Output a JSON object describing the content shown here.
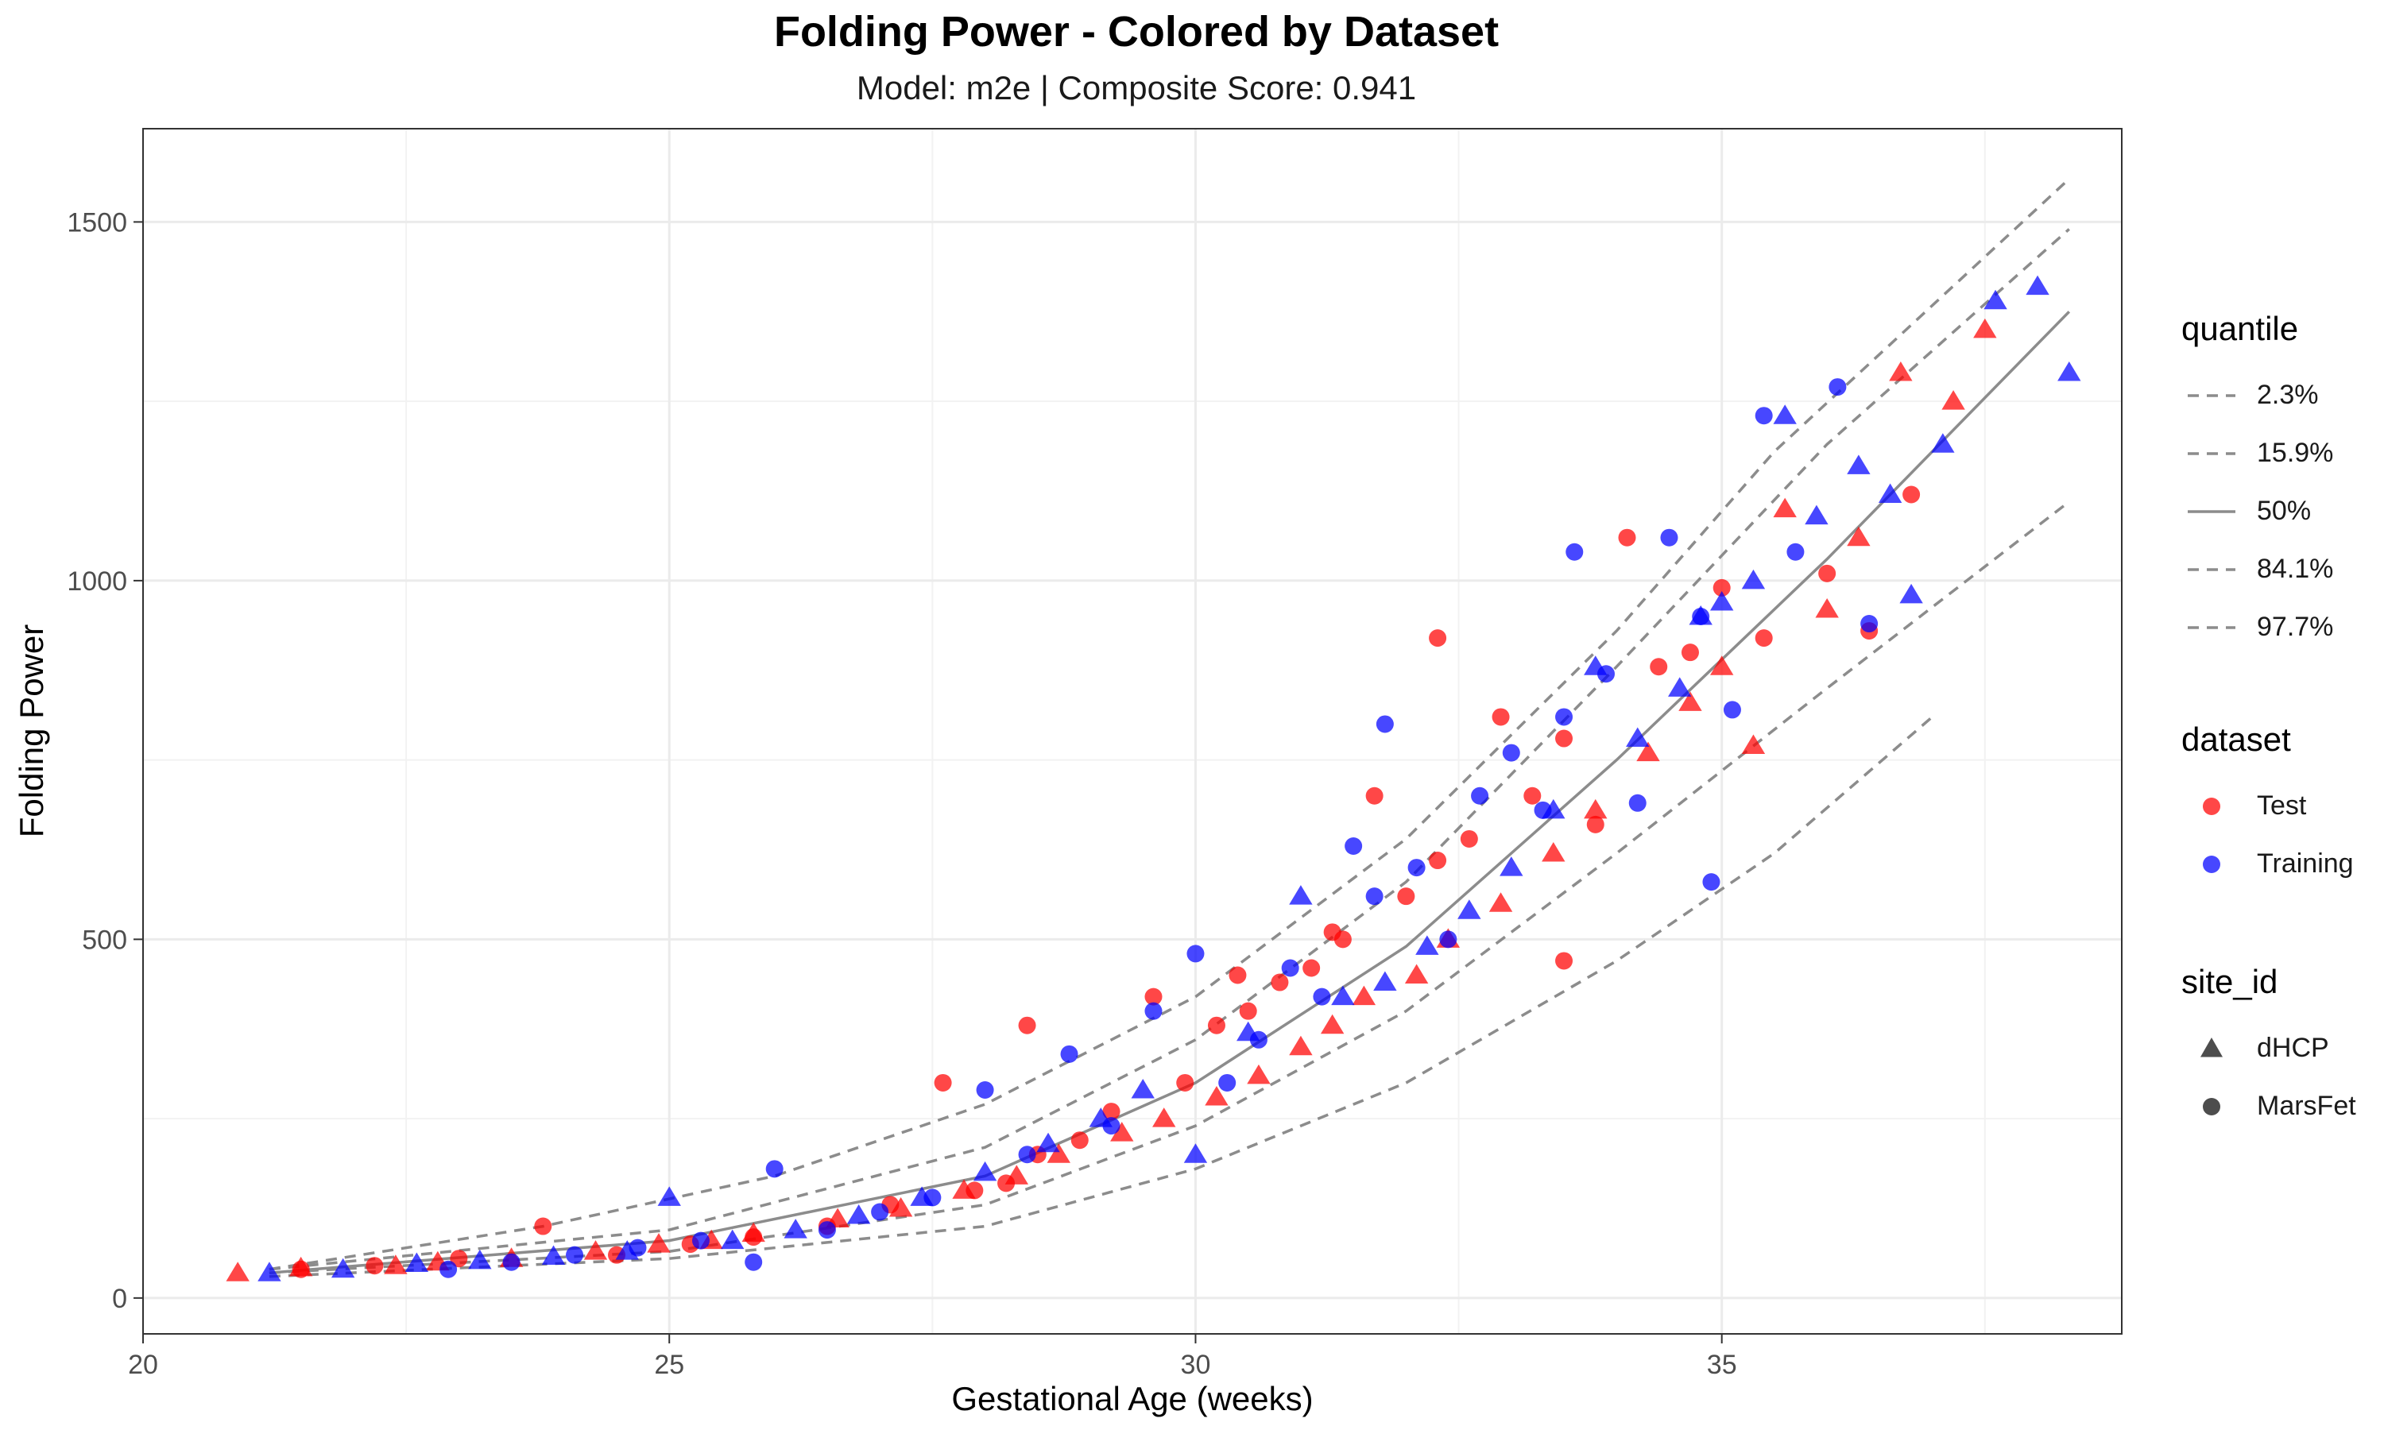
{
  "chart_data": {
    "type": "scatter",
    "title": "Folding Power - Colored by Dataset",
    "subtitle": "Model: m2e | Composite Score: 0.941",
    "xlabel": "Gestational Age (weeks)",
    "ylabel": "Folding Power",
    "xlim": [
      20,
      38.8
    ],
    "ylim": [
      -50,
      1630
    ],
    "x_ticks": [
      20,
      25,
      30,
      35
    ],
    "y_ticks": [
      0,
      500,
      1000,
      1500
    ],
    "grid": true,
    "colors": {
      "Test": "#ff0000",
      "Training": "#0000ff",
      "quantile": "#8c8c8c"
    },
    "legends": [
      {
        "title": "quantile",
        "entries": [
          {
            "label": "2.3%",
            "line": "dashed"
          },
          {
            "label": "15.9%",
            "line": "dashed"
          },
          {
            "label": "50%",
            "line": "solid"
          },
          {
            "label": "84.1%",
            "line": "dashed"
          },
          {
            "label": "97.7%",
            "line": "dashed"
          }
        ]
      },
      {
        "title": "dataset",
        "entries": [
          {
            "label": "Test",
            "color": "#ff0000"
          },
          {
            "label": "Training",
            "color": "#0000ff"
          }
        ]
      },
      {
        "title": "site_id",
        "entries": [
          {
            "label": "dHCP",
            "shape": "triangle"
          },
          {
            "label": "MarsFet",
            "shape": "circle"
          }
        ]
      }
    ],
    "quantile_curves": [
      {
        "name": "2.3%",
        "dash": true,
        "x": [
          21.2,
          25,
          28,
          30,
          32,
          34,
          35.5,
          37
        ],
        "y": [
          30,
          55,
          100,
          180,
          300,
          470,
          620,
          810
        ]
      },
      {
        "name": "15.9%",
        "dash": true,
        "x": [
          21.2,
          25,
          28,
          30,
          32,
          34,
          36,
          38.3
        ],
        "y": [
          35,
          65,
          130,
          240,
          400,
          620,
          850,
          1110
        ]
      },
      {
        "name": "50%",
        "dash": false,
        "x": [
          21.2,
          25,
          28,
          30,
          32,
          34,
          36,
          38.3
        ],
        "y": [
          35,
          80,
          170,
          300,
          490,
          750,
          1030,
          1375
        ]
      },
      {
        "name": "84.1%",
        "dash": true,
        "x": [
          21.2,
          25,
          28,
          30,
          32,
          34,
          36,
          38.3
        ],
        "y": [
          40,
          95,
          210,
          360,
          580,
          880,
          1190,
          1490
        ]
      },
      {
        "name": "97.7%",
        "dash": true,
        "x": [
          21.2,
          23.8,
          26,
          28,
          30,
          32,
          34,
          35.5,
          38.3
        ],
        "y": [
          40,
          100,
          170,
          270,
          420,
          640,
          930,
          1180,
          1560
        ]
      }
    ],
    "series": [
      {
        "name": "Test",
        "site": "dHCP",
        "x": [
          20.9,
          21.5,
          22.4,
          22.8,
          23.5,
          24.3,
          24.9,
          25.4,
          25.8,
          26.6,
          27.2,
          27.8,
          28.3,
          28.7,
          29.3,
          29.7,
          30.2,
          30.6,
          31.0,
          31.3,
          31.6,
          32.1,
          32.4,
          32.9,
          33.4,
          33.8,
          34.3,
          34.7,
          35.0,
          35.3,
          35.6,
          36.0,
          36.3,
          36.7,
          37.2,
          37.5
        ],
        "y": [
          35,
          42,
          45,
          50,
          55,
          65,
          75,
          80,
          90,
          110,
          125,
          150,
          170,
          200,
          230,
          250,
          280,
          310,
          350,
          380,
          420,
          450,
          500,
          550,
          620,
          680,
          760,
          830,
          880,
          770,
          1100,
          960,
          1060,
          1290,
          1250,
          1350
        ]
      },
      {
        "name": "Test",
        "site": "MarsFet",
        "x": [
          21.5,
          22.2,
          23.0,
          23.8,
          24.5,
          25.2,
          25.8,
          26.5,
          27.1,
          27.6,
          27.9,
          28.2,
          28.5,
          28.9,
          29.2,
          29.6,
          29.9,
          30.2,
          30.5,
          30.8,
          31.1,
          31.4,
          31.7,
          32.0,
          32.3,
          32.6,
          32.9,
          33.2,
          33.5,
          33.8,
          34.1,
          34.4,
          34.7,
          35.0,
          35.4,
          36.0,
          36.4,
          36.8,
          31.3,
          30.4,
          33.5,
          32.3,
          28.4
        ],
        "y": [
          40,
          45,
          55,
          100,
          60,
          75,
          85,
          100,
          130,
          300,
          150,
          160,
          200,
          220,
          260,
          420,
          300,
          380,
          400,
          440,
          460,
          500,
          700,
          560,
          920,
          640,
          810,
          700,
          470,
          660,
          1060,
          880,
          900,
          990,
          920,
          1010,
          930,
          1120,
          510,
          450,
          780,
          610,
          380
        ]
      },
      {
        "name": "Training",
        "site": "dHCP",
        "x": [
          21.2,
          21.9,
          22.6,
          23.2,
          23.9,
          24.6,
          25.0,
          25.6,
          26.2,
          26.8,
          27.4,
          28.0,
          28.6,
          29.1,
          29.5,
          30.0,
          30.5,
          31.0,
          31.4,
          31.8,
          32.2,
          32.6,
          33.0,
          33.4,
          33.8,
          34.2,
          34.6,
          35.0,
          35.3,
          35.6,
          35.9,
          36.3,
          36.6,
          37.1,
          37.6,
          38.0,
          38.3,
          36.8,
          34.8
        ],
        "y": [
          35,
          40,
          48,
          52,
          58,
          65,
          140,
          80,
          95,
          115,
          140,
          175,
          215,
          250,
          290,
          200,
          370,
          560,
          420,
          440,
          490,
          540,
          600,
          680,
          880,
          780,
          850,
          970,
          1000,
          1230,
          1090,
          1160,
          1120,
          1190,
          1390,
          1410,
          1290,
          980,
          950
        ]
      },
      {
        "name": "Training",
        "site": "MarsFet",
        "x": [
          22.9,
          23.5,
          24.1,
          24.7,
          25.3,
          25.8,
          26.0,
          26.5,
          27.0,
          27.5,
          28.0,
          28.4,
          28.8,
          29.2,
          29.6,
          30.0,
          30.3,
          30.6,
          30.9,
          31.2,
          31.5,
          31.8,
          32.1,
          32.4,
          32.7,
          33.0,
          33.3,
          33.6,
          33.9,
          34.2,
          34.5,
          34.8,
          35.1,
          35.4,
          35.7,
          36.1,
          36.4,
          31.7,
          33.5,
          34.9
        ],
        "y": [
          40,
          50,
          60,
          70,
          80,
          50,
          180,
          95,
          120,
          140,
          290,
          200,
          340,
          240,
          400,
          480,
          300,
          360,
          460,
          420,
          630,
          800,
          600,
          500,
          700,
          760,
          680,
          1040,
          870,
          690,
          1060,
          950,
          820,
          1230,
          1040,
          1270,
          940,
          560,
          810,
          580
        ]
      }
    ]
  }
}
